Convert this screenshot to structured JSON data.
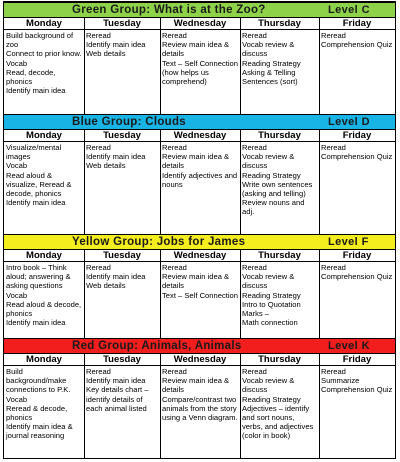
{
  "days": [
    "Monday",
    "Tuesday",
    "Wednesday",
    "Thursday",
    "Friday"
  ],
  "groups": [
    {
      "title": "Green Group: What is at the Zoo?",
      "level": "Level C",
      "color": "#8ed24a",
      "cells": [
        [
          "Build background of zoo",
          "Connect to prior know.",
          "Vocab",
          "Read, decode, phonics",
          "Identify main idea"
        ],
        [
          "Reread",
          "Identify main idea",
          "Web details"
        ],
        [
          "Reread",
          "Review main idea & details",
          "Text – Self Connection (how helps us comprehend)"
        ],
        [
          "Reread",
          "Vocab review & discuss",
          "Reading Strategy",
          "Asking & Telling Sentences (sort)"
        ],
        [
          "Reread",
          "Comprehension Quiz"
        ]
      ]
    },
    {
      "title": "Blue Group: Clouds",
      "level": "Level D",
      "color": "#19b4e6",
      "cells": [
        [
          "Visualize/mental images",
          "Vocab",
          "Read aloud & visualize, Reread & decode, phonics",
          "Identify main idea"
        ],
        [
          "Reread",
          "Identify main idea",
          "Web details"
        ],
        [
          "Reread",
          "Review main idea & details",
          "Identify adjectives and nouns"
        ],
        [
          "Reread",
          "Vocab review & discuss",
          "Reading Strategy",
          "Write own sentences (asking and telling)",
          "Review nouns and adj."
        ],
        [
          "Reread",
          "Comprehension Quiz"
        ]
      ]
    },
    {
      "title": "Yellow Group: Jobs for James",
      "level": "Level F",
      "color": "#f5ee1e",
      "cells": [
        [
          "Intro book – Think aloud; answering & asking questions",
          "Vocab",
          "Read aloud & decode, phonics",
          "Identify main idea"
        ],
        [
          "Reread",
          "Identify main idea",
          "Web details"
        ],
        [
          "Reread",
          "Review main idea & details",
          "Text – Self Connection"
        ],
        [
          "Reread",
          "Vocab review & discuss",
          "Reading Strategy",
          "Intro to Quotation Marks –",
          "Math connection"
        ],
        [
          "Reread",
          "Comprehension Quiz"
        ]
      ]
    },
    {
      "title": "Red Group: Animals, Animals",
      "level": "Level K",
      "color": "#f21d1d",
      "cells": [
        [
          "Build background/make connections to P.K.",
          "Vocab",
          "Reread & decode, phonics",
          "Identify main idea & journal reasoning"
        ],
        [
          "Reread",
          "Identify main idea",
          "Key details chart – identify details of each animal listed"
        ],
        [
          "Reread",
          "Review main idea & details",
          "Compare/contrast two animals from the story using a Venn diagram."
        ],
        [
          "Reread",
          "Vocab review & discuss",
          "Reading Strategy",
          "Adjectives – identify and sort nouns, verbs, and adjectives (color in book)"
        ],
        [
          "Reread",
          "Summarize",
          "Comprehension Quiz"
        ]
      ]
    }
  ]
}
